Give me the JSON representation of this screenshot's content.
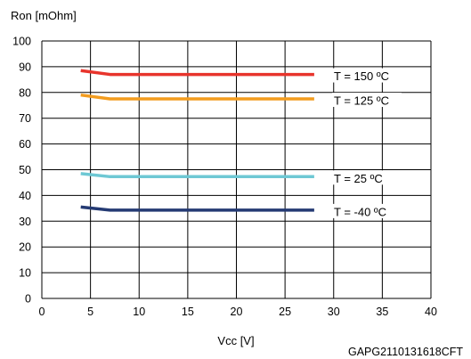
{
  "chart_data": {
    "type": "line",
    "ylabel": "Ron [mOhm]",
    "xlabel": "Vcc [V]",
    "xlim": [
      0,
      40
    ],
    "ylim": [
      0,
      100
    ],
    "x_ticks": [
      0,
      5,
      10,
      15,
      20,
      25,
      30,
      35,
      40
    ],
    "y_ticks": [
      0,
      10,
      20,
      30,
      40,
      50,
      60,
      70,
      80,
      90,
      100
    ],
    "grid": true,
    "series": [
      {
        "name": "T = 150 ºC",
        "color": "#e8342c",
        "x": [
          4,
          7,
          28
        ],
        "values": [
          88.5,
          87,
          87
        ]
      },
      {
        "name": "T = 125 ºC",
        "color": "#f39c1e",
        "x": [
          4,
          7,
          28
        ],
        "values": [
          79,
          77.5,
          77.5
        ]
      },
      {
        "name": "T = 25 ºC",
        "color": "#6ec8d4",
        "x": [
          4,
          7,
          28
        ],
        "values": [
          48.5,
          47.3,
          47.3
        ]
      },
      {
        "name": "T = -40 ºC",
        "color": "#243a73",
        "x": [
          4,
          7,
          28
        ],
        "values": [
          35.5,
          34.3,
          34.3
        ]
      }
    ],
    "caption": "GAPG2110131618CFT"
  }
}
